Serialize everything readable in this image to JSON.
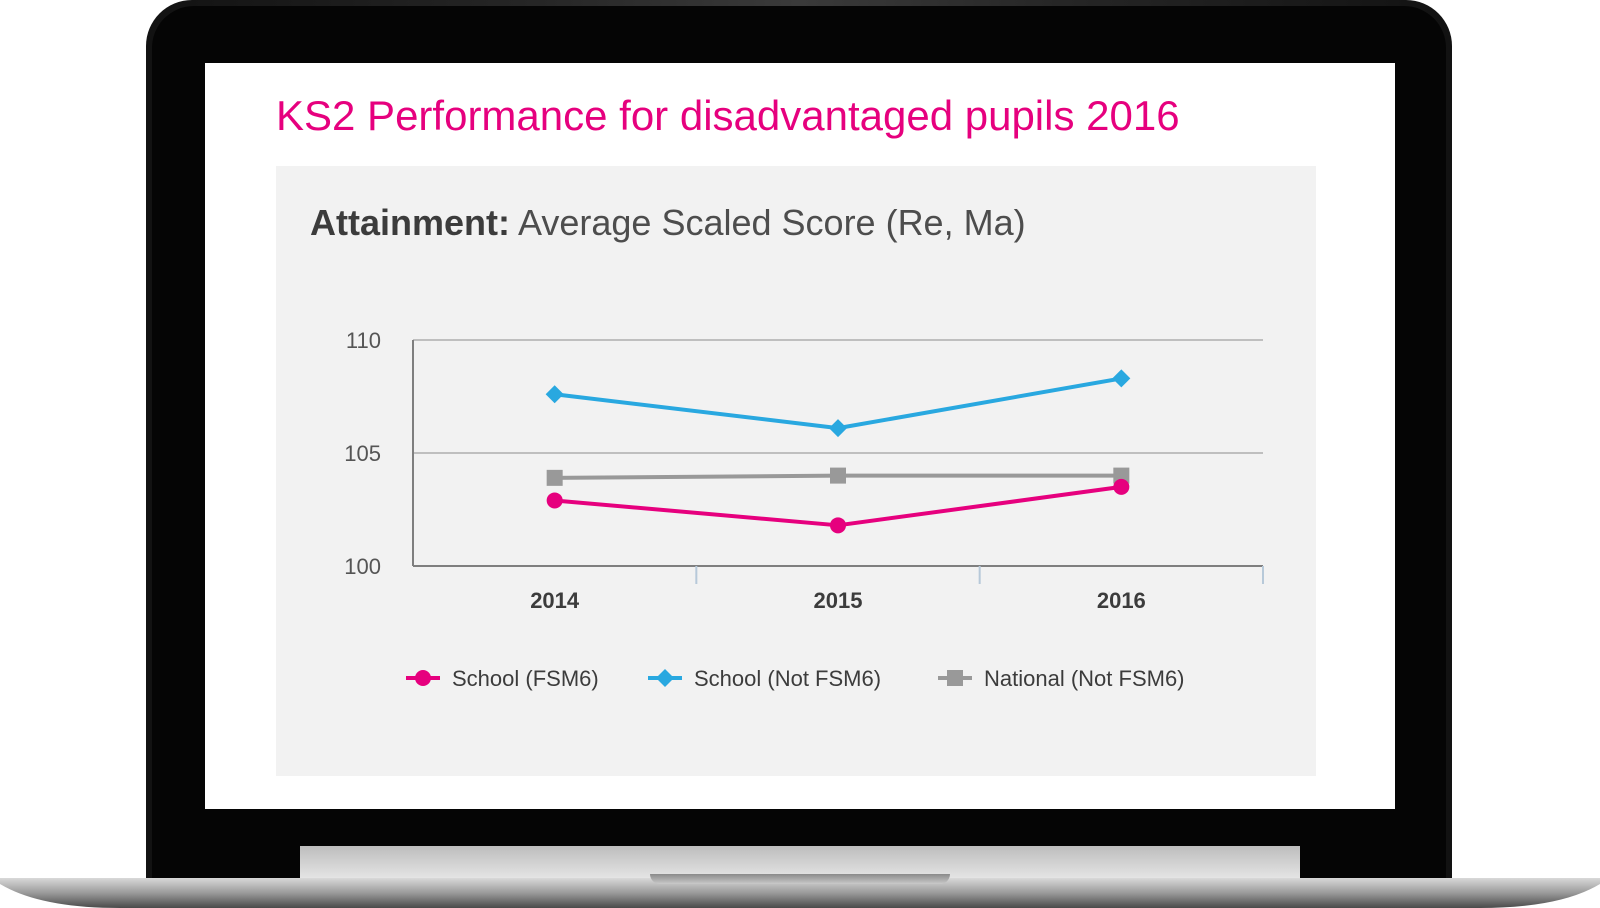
{
  "page_title": "KS2 Performance for disadvantaged pupils 2016",
  "chart_title": {
    "bold_part": "Attainment:",
    "rest": "Average Scaled Score (Re, Ma)"
  },
  "colors": {
    "fsm6": "#e6007e",
    "not_fsm6": "#29a8e0",
    "national": "#999999",
    "grid": "#bfbfbf",
    "axis": "#7f7f7f",
    "panel": "#f2f2f2",
    "title_accent": "#e6007e"
  },
  "chart_data": {
    "type": "line",
    "title": "Attainment: Average Scaled Score (Re, Ma)",
    "categories": [
      "2014",
      "2015",
      "2016"
    ],
    "ylim": [
      100,
      110
    ],
    "yticks": [
      "100",
      "105",
      "110"
    ],
    "grid": true,
    "legend_position": "bottom",
    "series": [
      {
        "name": "School (FSM6)",
        "marker": "circle",
        "values": [
          102.9,
          101.8,
          103.5
        ]
      },
      {
        "name": "School (Not FSM6)",
        "marker": "diamond",
        "values": [
          107.6,
          106.1,
          108.3
        ]
      },
      {
        "name": "National (Not FSM6)",
        "marker": "square",
        "values": [
          103.9,
          104.0,
          104.0
        ]
      }
    ]
  }
}
